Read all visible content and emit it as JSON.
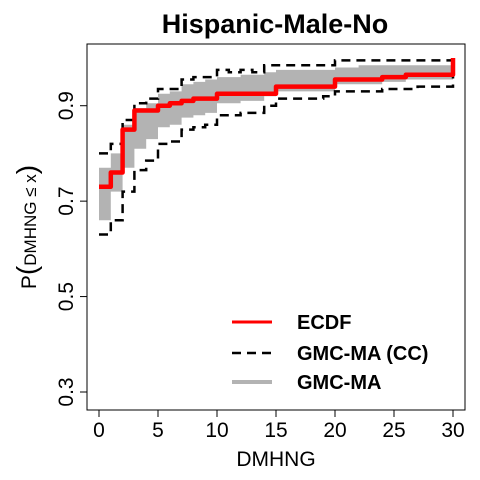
{
  "chart_data": {
    "type": "line",
    "title": "Hispanic-Male-No",
    "xlabel": "DMHNG",
    "ylabel_prefix": "P",
    "ylabel_inner": "DMHNG ≤ x",
    "xlim": [
      0,
      30
    ],
    "ylim": [
      0.3,
      1.0
    ],
    "x_ticks": [
      0,
      5,
      10,
      15,
      20,
      25,
      30
    ],
    "y_ticks": [
      0.3,
      0.5,
      0.7,
      0.9
    ],
    "y_tick_labels": [
      "0.3",
      "0.5",
      "0.7",
      "0.9"
    ],
    "grid": false,
    "legend_position": "bottom-right",
    "colors": {
      "ecdf": "#ff0000",
      "cc": "#000000",
      "band": "#b3b3b3"
    },
    "series": [
      {
        "name": "ECDF",
        "style": "step",
        "x": [
          0,
          1,
          2,
          3,
          4,
          5,
          6,
          7,
          8,
          9,
          10,
          11,
          12,
          13,
          14,
          15,
          16,
          17,
          18,
          19,
          20,
          21,
          22,
          23,
          24,
          25,
          26,
          27,
          28,
          29,
          30
        ],
        "y": [
          0.73,
          0.76,
          0.85,
          0.89,
          0.89,
          0.9,
          0.905,
          0.91,
          0.915,
          0.915,
          0.925,
          0.925,
          0.925,
          0.925,
          0.925,
          0.94,
          0.94,
          0.94,
          0.94,
          0.94,
          0.955,
          0.955,
          0.955,
          0.955,
          0.96,
          0.96,
          0.965,
          0.965,
          0.965,
          0.965,
          1.0
        ]
      },
      {
        "name": "GMC-MA (CC)",
        "style": "dashed-band",
        "x": [
          0,
          1,
          2,
          3,
          4,
          5,
          6,
          7,
          8,
          9,
          10,
          11,
          12,
          13,
          14,
          15,
          16,
          17,
          18,
          19,
          20,
          21,
          22,
          23,
          24,
          25,
          26,
          27,
          28,
          29,
          30
        ],
        "upper": [
          0.8,
          0.82,
          0.87,
          0.905,
          0.915,
          0.935,
          0.935,
          0.955,
          0.96,
          0.96,
          0.975,
          0.97,
          0.975,
          0.97,
          0.985,
          0.985,
          0.985,
          0.985,
          0.985,
          0.985,
          0.995,
          0.995,
          0.995,
          0.995,
          0.995,
          0.995,
          0.995,
          0.995,
          0.995,
          0.995,
          1.0
        ],
        "lower": [
          0.63,
          0.66,
          0.72,
          0.765,
          0.785,
          0.82,
          0.825,
          0.85,
          0.855,
          0.86,
          0.88,
          0.88,
          0.885,
          0.885,
          0.9,
          0.915,
          0.915,
          0.915,
          0.915,
          0.92,
          0.93,
          0.93,
          0.93,
          0.93,
          0.935,
          0.935,
          0.935,
          0.94,
          0.94,
          0.94,
          1.0
        ]
      },
      {
        "name": "GMC-MA",
        "style": "band",
        "x": [
          0,
          1,
          2,
          3,
          4,
          5,
          6,
          7,
          8,
          9,
          10,
          11,
          12,
          13,
          14,
          15,
          16,
          17,
          18,
          19,
          20,
          21,
          22,
          23,
          24,
          25,
          26,
          27,
          28,
          29,
          30
        ],
        "upper": [
          0.77,
          0.8,
          0.86,
          0.895,
          0.905,
          0.925,
          0.93,
          0.945,
          0.95,
          0.955,
          0.96,
          0.96,
          0.965,
          0.965,
          0.97,
          0.975,
          0.975,
          0.975,
          0.975,
          0.975,
          0.98,
          0.98,
          0.985,
          0.985,
          0.985,
          0.985,
          0.985,
          0.985,
          0.985,
          0.985,
          1.0
        ],
        "lower": [
          0.66,
          0.72,
          0.77,
          0.81,
          0.83,
          0.855,
          0.86,
          0.875,
          0.88,
          0.885,
          0.905,
          0.905,
          0.91,
          0.91,
          0.92,
          0.93,
          0.93,
          0.93,
          0.93,
          0.93,
          0.945,
          0.945,
          0.945,
          0.945,
          0.95,
          0.95,
          0.955,
          0.955,
          0.955,
          0.955,
          1.0
        ]
      }
    ],
    "legend": [
      {
        "label": "ECDF",
        "kind": "ecdf"
      },
      {
        "label": "GMC-MA (CC)",
        "kind": "cc"
      },
      {
        "label": "GMC-MA",
        "kind": "band"
      }
    ]
  }
}
